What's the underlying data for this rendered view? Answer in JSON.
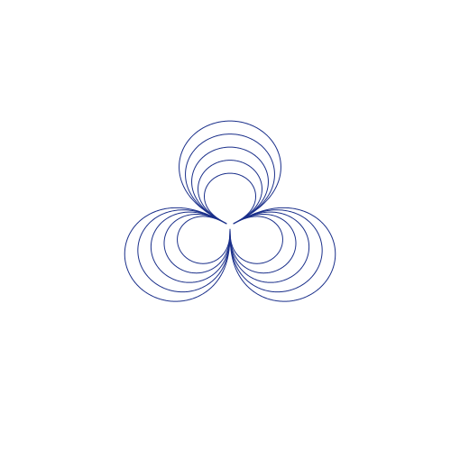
{
  "figure": {
    "shape": "triple-loop trefoil knot, five concentric strands",
    "stroke_color": "#1a2f8a",
    "background_color": "#ffffff",
    "strand_count": 5,
    "lobe_count": 3
  }
}
